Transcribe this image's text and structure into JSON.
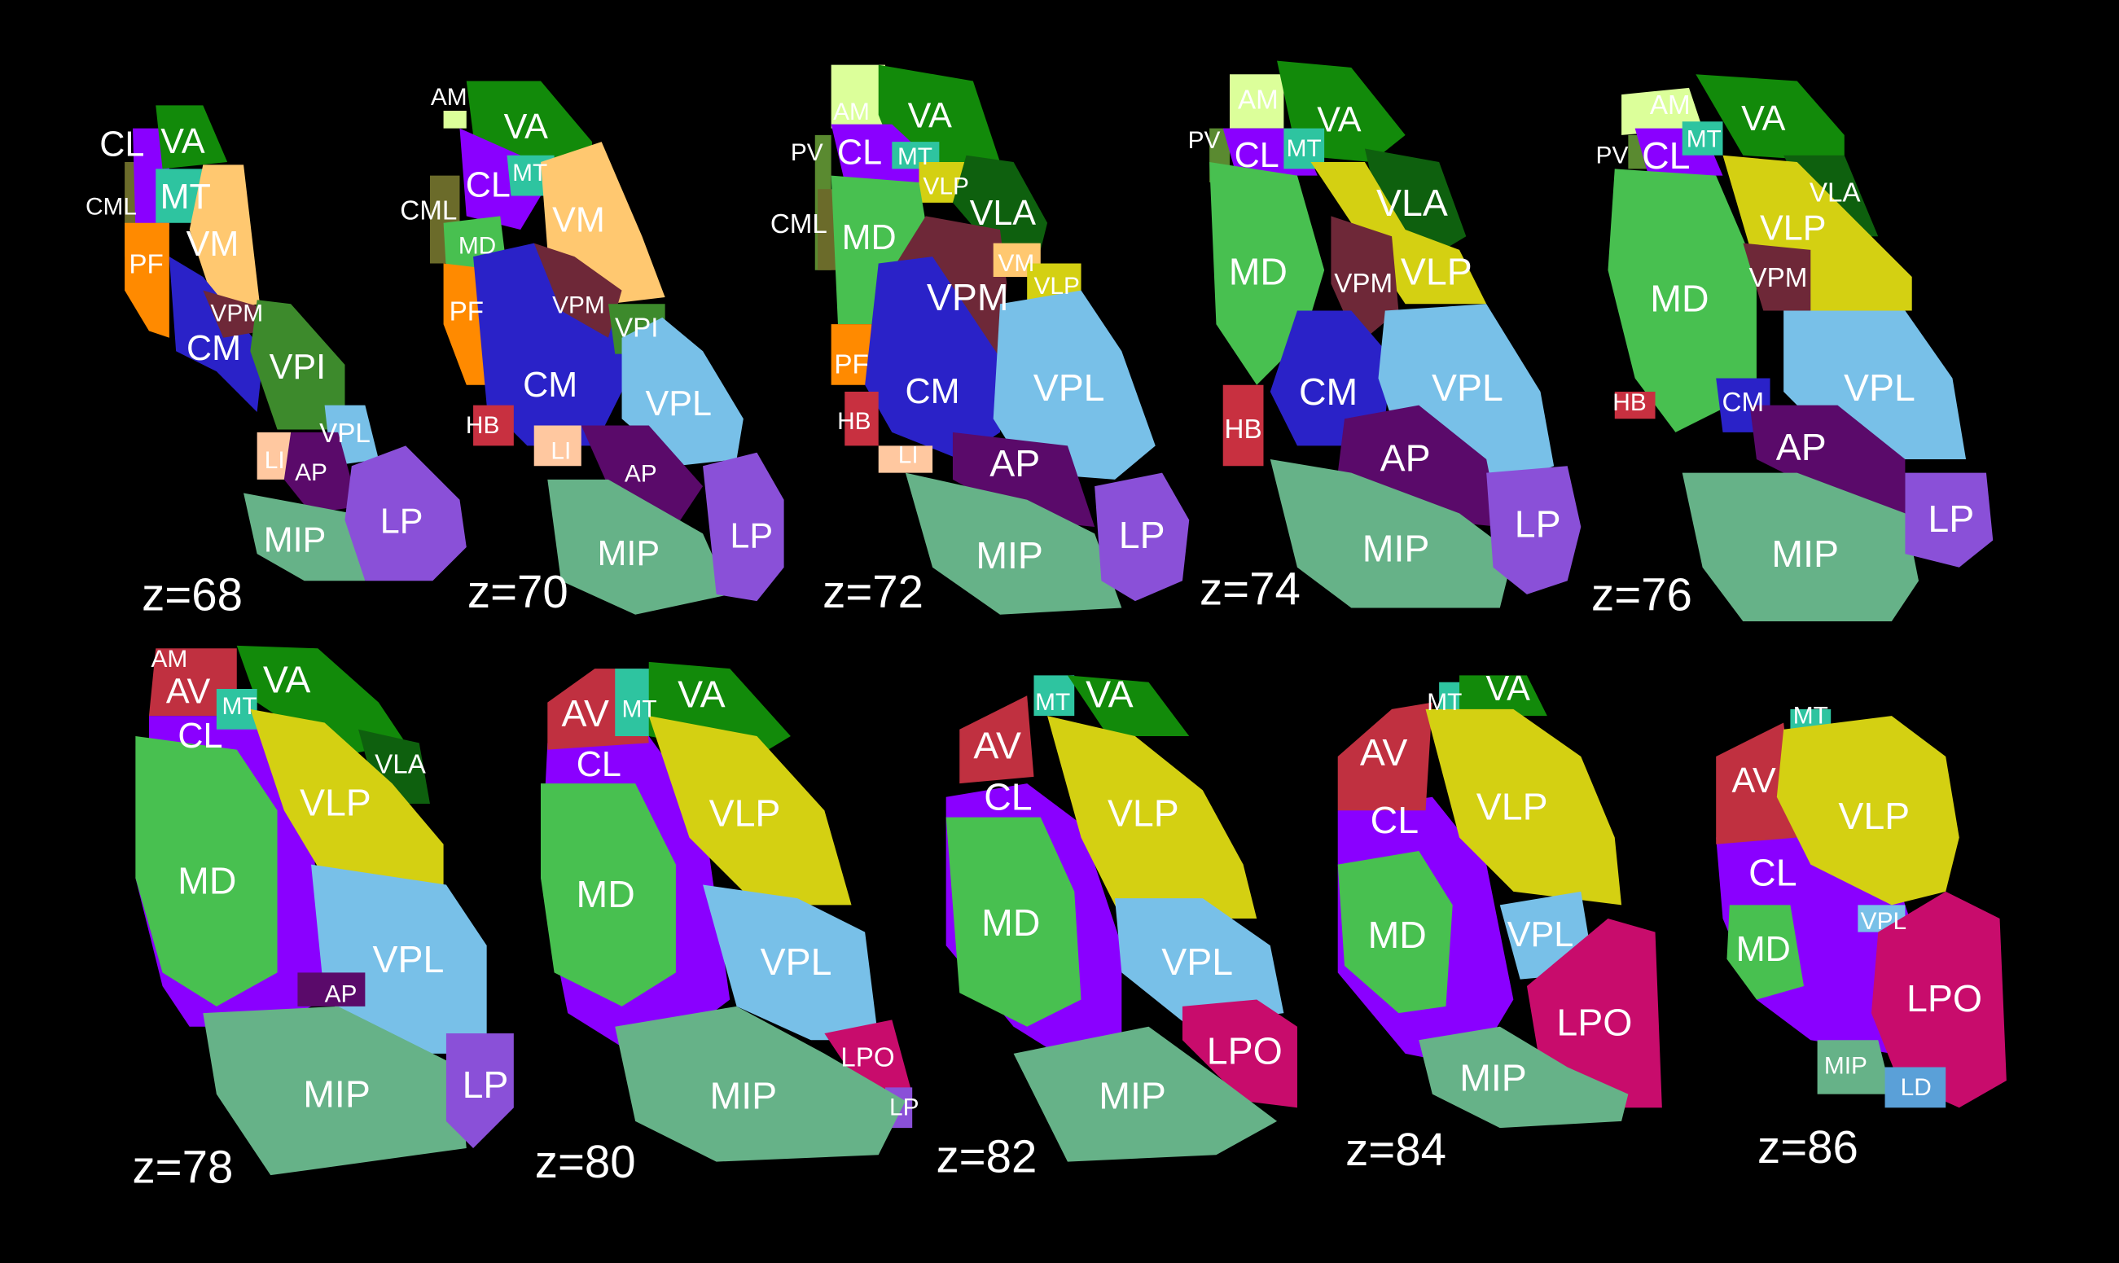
{
  "slices": [
    {
      "label": "z=68",
      "regions": [
        {
          "name": "CML",
          "color": "#6b6b2a"
        },
        {
          "name": "CL",
          "color": "#8a00ff"
        },
        {
          "name": "VA",
          "color": "#128a0a"
        },
        {
          "name": "MT",
          "color": "#2ec4a0"
        },
        {
          "name": "VM",
          "color": "#ffc870"
        },
        {
          "name": "PF",
          "color": "#ff8a00"
        },
        {
          "name": "CM",
          "color": "#2a22c8"
        },
        {
          "name": "VPM",
          "color": "#6e2838"
        },
        {
          "name": "VPI",
          "color": "#3d8a2c"
        },
        {
          "name": "VPL",
          "color": "#78c0e8"
        },
        {
          "name": "LI",
          "color": "#ffc8a0"
        },
        {
          "name": "AP",
          "color": "#5a0a6a"
        },
        {
          "name": "MIP",
          "color": "#66b288"
        },
        {
          "name": "LP",
          "color": "#8a50d8"
        }
      ]
    },
    {
      "label": "z=70",
      "regions": [
        {
          "name": "AM",
          "color": "#dcff9a"
        },
        {
          "name": "VA",
          "color": "#128a0a"
        },
        {
          "name": "CML",
          "color": "#6b6b2a"
        },
        {
          "name": "CL",
          "color": "#8a00ff"
        },
        {
          "name": "MT",
          "color": "#2ec4a0"
        },
        {
          "name": "VM",
          "color": "#ffc870"
        },
        {
          "name": "MD",
          "color": "#48c050"
        },
        {
          "name": "PF",
          "color": "#ff8a00"
        },
        {
          "name": "CM",
          "color": "#2a22c8"
        },
        {
          "name": "VPM",
          "color": "#6e2838"
        },
        {
          "name": "VPI",
          "color": "#3d8a2c"
        },
        {
          "name": "VPL",
          "color": "#78c0e8"
        },
        {
          "name": "HB",
          "color": "#c83040"
        },
        {
          "name": "LI",
          "color": "#ffc8a0"
        },
        {
          "name": "AP",
          "color": "#5a0a6a"
        },
        {
          "name": "MIP",
          "color": "#66b288"
        },
        {
          "name": "LP",
          "color": "#8a50d8"
        }
      ]
    },
    {
      "label": "z=72",
      "regions": [
        {
          "name": "AM",
          "color": "#dcff9a"
        },
        {
          "name": "VA",
          "color": "#128a0a"
        },
        {
          "name": "PV",
          "color": "#5a8a30"
        },
        {
          "name": "CL",
          "color": "#8a00ff"
        },
        {
          "name": "MT",
          "color": "#2ec4a0"
        },
        {
          "name": "CML",
          "color": "#6b6b2a"
        },
        {
          "name": "VLP",
          "color": "#d4d012"
        },
        {
          "name": "VLA",
          "color": "#0e600e"
        },
        {
          "name": "MD",
          "color": "#48c050"
        },
        {
          "name": "VPM",
          "color": "#6e2838"
        },
        {
          "name": "VM",
          "color": "#ffc870"
        },
        {
          "name": "VLP",
          "color": "#d4d012"
        },
        {
          "name": "PF",
          "color": "#ff8a00"
        },
        {
          "name": "CM",
          "color": "#2a22c8"
        },
        {
          "name": "VPL",
          "color": "#78c0e8"
        },
        {
          "name": "HB",
          "color": "#c83040"
        },
        {
          "name": "LI",
          "color": "#ffc8a0"
        },
        {
          "name": "AP",
          "color": "#5a0a6a"
        },
        {
          "name": "MIP",
          "color": "#66b288"
        },
        {
          "name": "LP",
          "color": "#8a50d8"
        }
      ]
    },
    {
      "label": "z=74",
      "regions": [
        {
          "name": "AM",
          "color": "#dcff9a"
        },
        {
          "name": "VA",
          "color": "#128a0a"
        },
        {
          "name": "PV",
          "color": "#5a8a30"
        },
        {
          "name": "CL",
          "color": "#8a00ff"
        },
        {
          "name": "MT",
          "color": "#2ec4a0"
        },
        {
          "name": "VLA",
          "color": "#0e600e"
        },
        {
          "name": "VLP",
          "color": "#d4d012"
        },
        {
          "name": "MD",
          "color": "#48c050"
        },
        {
          "name": "VPM",
          "color": "#6e2838"
        },
        {
          "name": "CM",
          "color": "#2a22c8"
        },
        {
          "name": "VPL",
          "color": "#78c0e8"
        },
        {
          "name": "HB",
          "color": "#c83040"
        },
        {
          "name": "AP",
          "color": "#5a0a6a"
        },
        {
          "name": "MIP",
          "color": "#66b288"
        },
        {
          "name": "LP",
          "color": "#8a50d8"
        }
      ]
    },
    {
      "label": "z=76",
      "regions": [
        {
          "name": "AM",
          "color": "#dcff9a"
        },
        {
          "name": "VA",
          "color": "#128a0a"
        },
        {
          "name": "PV",
          "color": "#5a8a30"
        },
        {
          "name": "CL",
          "color": "#8a00ff"
        },
        {
          "name": "MT",
          "color": "#2ec4a0"
        },
        {
          "name": "VLA",
          "color": "#0e600e"
        },
        {
          "name": "VLP",
          "color": "#d4d012"
        },
        {
          "name": "MD",
          "color": "#48c050"
        },
        {
          "name": "VPM",
          "color": "#6e2838"
        },
        {
          "name": "VPL",
          "color": "#78c0e8"
        },
        {
          "name": "HB",
          "color": "#c83040"
        },
        {
          "name": "CM",
          "color": "#2a22c8"
        },
        {
          "name": "AP",
          "color": "#5a0a6a"
        },
        {
          "name": "MIP",
          "color": "#66b288"
        },
        {
          "name": "LP",
          "color": "#8a50d8"
        }
      ]
    },
    {
      "label": "z=78",
      "regions": [
        {
          "name": "CL",
          "color": "#8a00ff"
        },
        {
          "name": "AM",
          "color": "#dcff9a"
        },
        {
          "name": "AV",
          "color": "#c03040"
        },
        {
          "name": "VA",
          "color": "#128a0a"
        },
        {
          "name": "MT",
          "color": "#2ec4a0"
        },
        {
          "name": "VLA",
          "color": "#0e600e"
        },
        {
          "name": "VLP",
          "color": "#d4d012"
        },
        {
          "name": "MD",
          "color": "#48c050"
        },
        {
          "name": "VPL",
          "color": "#78c0e8"
        },
        {
          "name": "AP",
          "color": "#5a0a6a"
        },
        {
          "name": "MIP",
          "color": "#66b288"
        },
        {
          "name": "LP",
          "color": "#8a50d8"
        }
      ]
    },
    {
      "label": "z=80",
      "regions": [
        {
          "name": "CL",
          "color": "#8a00ff"
        },
        {
          "name": "AV",
          "color": "#c03040"
        },
        {
          "name": "MT",
          "color": "#2ec4a0"
        },
        {
          "name": "VA",
          "color": "#128a0a"
        },
        {
          "name": "VLP",
          "color": "#d4d012"
        },
        {
          "name": "MD",
          "color": "#48c050"
        },
        {
          "name": "VPL",
          "color": "#78c0e8"
        },
        {
          "name": "LPO",
          "color": "#c80c6c"
        },
        {
          "name": "LP",
          "color": "#8a50d8"
        },
        {
          "name": "MIP",
          "color": "#66b288"
        }
      ]
    },
    {
      "label": "z=82",
      "regions": [
        {
          "name": "CL",
          "color": "#8a00ff"
        },
        {
          "name": "AV",
          "color": "#c03040"
        },
        {
          "name": "MT",
          "color": "#2ec4a0"
        },
        {
          "name": "VA",
          "color": "#128a0a"
        },
        {
          "name": "VLP",
          "color": "#d4d012"
        },
        {
          "name": "MD",
          "color": "#48c050"
        },
        {
          "name": "VPL",
          "color": "#78c0e8"
        },
        {
          "name": "LPO",
          "color": "#c80c6c"
        },
        {
          "name": "MIP",
          "color": "#66b288"
        }
      ]
    },
    {
      "label": "z=84",
      "regions": [
        {
          "name": "CL",
          "color": "#8a00ff"
        },
        {
          "name": "AV",
          "color": "#c03040"
        },
        {
          "name": "MT",
          "color": "#2ec4a0"
        },
        {
          "name": "VA",
          "color": "#128a0a"
        },
        {
          "name": "VLP",
          "color": "#d4d012"
        },
        {
          "name": "MD",
          "color": "#48c050"
        },
        {
          "name": "VPL",
          "color": "#78c0e8"
        },
        {
          "name": "LPO",
          "color": "#c80c6c"
        },
        {
          "name": "MIP",
          "color": "#66b288"
        }
      ]
    },
    {
      "label": "z=86",
      "regions": [
        {
          "name": "CL",
          "color": "#8a00ff"
        },
        {
          "name": "AV",
          "color": "#c03040"
        },
        {
          "name": "MT",
          "color": "#2ec4a0"
        },
        {
          "name": "VLP",
          "color": "#d4d012"
        },
        {
          "name": "VPL",
          "color": "#78c0e8"
        },
        {
          "name": "MD",
          "color": "#48c050"
        },
        {
          "name": "LPO",
          "color": "#c80c6c"
        },
        {
          "name": "MIP",
          "color": "#66b288"
        },
        {
          "name": "LD",
          "color": "#5aa0d8"
        }
      ]
    }
  ]
}
